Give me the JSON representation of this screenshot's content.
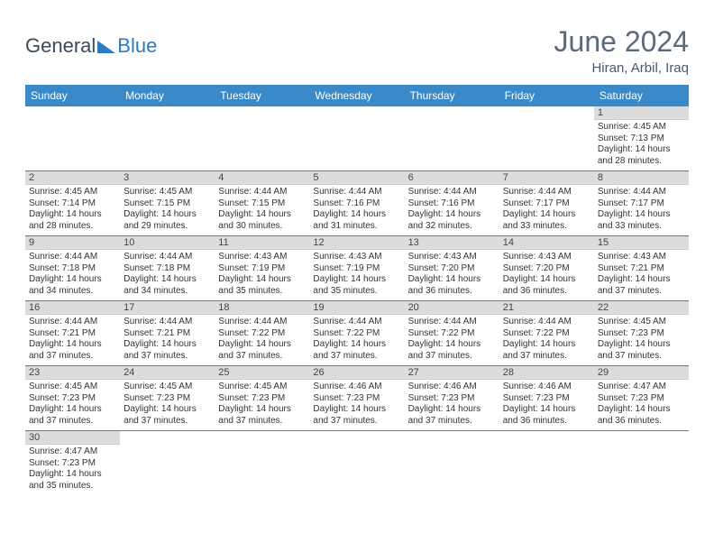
{
  "brand": {
    "part1": "General",
    "part2": "Blue"
  },
  "title": {
    "month": "June 2024",
    "location": "Hiran, Arbil, Iraq"
  },
  "header_bg": "#3a89c9",
  "weekdays": [
    "Sunday",
    "Monday",
    "Tuesday",
    "Wednesday",
    "Thursday",
    "Friday",
    "Saturday"
  ],
  "weeks": [
    [
      {
        "day": "",
        "lines": []
      },
      {
        "day": "",
        "lines": []
      },
      {
        "day": "",
        "lines": []
      },
      {
        "day": "",
        "lines": []
      },
      {
        "day": "",
        "lines": []
      },
      {
        "day": "",
        "lines": []
      },
      {
        "day": "1",
        "lines": [
          "Sunrise: 4:45 AM",
          "Sunset: 7:13 PM",
          "Daylight: 14 hours",
          "and 28 minutes."
        ]
      }
    ],
    [
      {
        "day": "2",
        "lines": [
          "Sunrise: 4:45 AM",
          "Sunset: 7:14 PM",
          "Daylight: 14 hours",
          "and 28 minutes."
        ]
      },
      {
        "day": "3",
        "lines": [
          "Sunrise: 4:45 AM",
          "Sunset: 7:15 PM",
          "Daylight: 14 hours",
          "and 29 minutes."
        ]
      },
      {
        "day": "4",
        "lines": [
          "Sunrise: 4:44 AM",
          "Sunset: 7:15 PM",
          "Daylight: 14 hours",
          "and 30 minutes."
        ]
      },
      {
        "day": "5",
        "lines": [
          "Sunrise: 4:44 AM",
          "Sunset: 7:16 PM",
          "Daylight: 14 hours",
          "and 31 minutes."
        ]
      },
      {
        "day": "6",
        "lines": [
          "Sunrise: 4:44 AM",
          "Sunset: 7:16 PM",
          "Daylight: 14 hours",
          "and 32 minutes."
        ]
      },
      {
        "day": "7",
        "lines": [
          "Sunrise: 4:44 AM",
          "Sunset: 7:17 PM",
          "Daylight: 14 hours",
          "and 33 minutes."
        ]
      },
      {
        "day": "8",
        "lines": [
          "Sunrise: 4:44 AM",
          "Sunset: 7:17 PM",
          "Daylight: 14 hours",
          "and 33 minutes."
        ]
      }
    ],
    [
      {
        "day": "9",
        "lines": [
          "Sunrise: 4:44 AM",
          "Sunset: 7:18 PM",
          "Daylight: 14 hours",
          "and 34 minutes."
        ]
      },
      {
        "day": "10",
        "lines": [
          "Sunrise: 4:44 AM",
          "Sunset: 7:18 PM",
          "Daylight: 14 hours",
          "and 34 minutes."
        ]
      },
      {
        "day": "11",
        "lines": [
          "Sunrise: 4:43 AM",
          "Sunset: 7:19 PM",
          "Daylight: 14 hours",
          "and 35 minutes."
        ]
      },
      {
        "day": "12",
        "lines": [
          "Sunrise: 4:43 AM",
          "Sunset: 7:19 PM",
          "Daylight: 14 hours",
          "and 35 minutes."
        ]
      },
      {
        "day": "13",
        "lines": [
          "Sunrise: 4:43 AM",
          "Sunset: 7:20 PM",
          "Daylight: 14 hours",
          "and 36 minutes."
        ]
      },
      {
        "day": "14",
        "lines": [
          "Sunrise: 4:43 AM",
          "Sunset: 7:20 PM",
          "Daylight: 14 hours",
          "and 36 minutes."
        ]
      },
      {
        "day": "15",
        "lines": [
          "Sunrise: 4:43 AM",
          "Sunset: 7:21 PM",
          "Daylight: 14 hours",
          "and 37 minutes."
        ]
      }
    ],
    [
      {
        "day": "16",
        "lines": [
          "Sunrise: 4:44 AM",
          "Sunset: 7:21 PM",
          "Daylight: 14 hours",
          "and 37 minutes."
        ]
      },
      {
        "day": "17",
        "lines": [
          "Sunrise: 4:44 AM",
          "Sunset: 7:21 PM",
          "Daylight: 14 hours",
          "and 37 minutes."
        ]
      },
      {
        "day": "18",
        "lines": [
          "Sunrise: 4:44 AM",
          "Sunset: 7:22 PM",
          "Daylight: 14 hours",
          "and 37 minutes."
        ]
      },
      {
        "day": "19",
        "lines": [
          "Sunrise: 4:44 AM",
          "Sunset: 7:22 PM",
          "Daylight: 14 hours",
          "and 37 minutes."
        ]
      },
      {
        "day": "20",
        "lines": [
          "Sunrise: 4:44 AM",
          "Sunset: 7:22 PM",
          "Daylight: 14 hours",
          "and 37 minutes."
        ]
      },
      {
        "day": "21",
        "lines": [
          "Sunrise: 4:44 AM",
          "Sunset: 7:22 PM",
          "Daylight: 14 hours",
          "and 37 minutes."
        ]
      },
      {
        "day": "22",
        "lines": [
          "Sunrise: 4:45 AM",
          "Sunset: 7:23 PM",
          "Daylight: 14 hours",
          "and 37 minutes."
        ]
      }
    ],
    [
      {
        "day": "23",
        "lines": [
          "Sunrise: 4:45 AM",
          "Sunset: 7:23 PM",
          "Daylight: 14 hours",
          "and 37 minutes."
        ]
      },
      {
        "day": "24",
        "lines": [
          "Sunrise: 4:45 AM",
          "Sunset: 7:23 PM",
          "Daylight: 14 hours",
          "and 37 minutes."
        ]
      },
      {
        "day": "25",
        "lines": [
          "Sunrise: 4:45 AM",
          "Sunset: 7:23 PM",
          "Daylight: 14 hours",
          "and 37 minutes."
        ]
      },
      {
        "day": "26",
        "lines": [
          "Sunrise: 4:46 AM",
          "Sunset: 7:23 PM",
          "Daylight: 14 hours",
          "and 37 minutes."
        ]
      },
      {
        "day": "27",
        "lines": [
          "Sunrise: 4:46 AM",
          "Sunset: 7:23 PM",
          "Daylight: 14 hours",
          "and 37 minutes."
        ]
      },
      {
        "day": "28",
        "lines": [
          "Sunrise: 4:46 AM",
          "Sunset: 7:23 PM",
          "Daylight: 14 hours",
          "and 36 minutes."
        ]
      },
      {
        "day": "29",
        "lines": [
          "Sunrise: 4:47 AM",
          "Sunset: 7:23 PM",
          "Daylight: 14 hours",
          "and 36 minutes."
        ]
      }
    ],
    [
      {
        "day": "30",
        "lines": [
          "Sunrise: 4:47 AM",
          "Sunset: 7:23 PM",
          "Daylight: 14 hours",
          "and 35 minutes."
        ]
      },
      {
        "day": "",
        "lines": []
      },
      {
        "day": "",
        "lines": []
      },
      {
        "day": "",
        "lines": []
      },
      {
        "day": "",
        "lines": []
      },
      {
        "day": "",
        "lines": []
      },
      {
        "day": "",
        "lines": []
      }
    ]
  ]
}
